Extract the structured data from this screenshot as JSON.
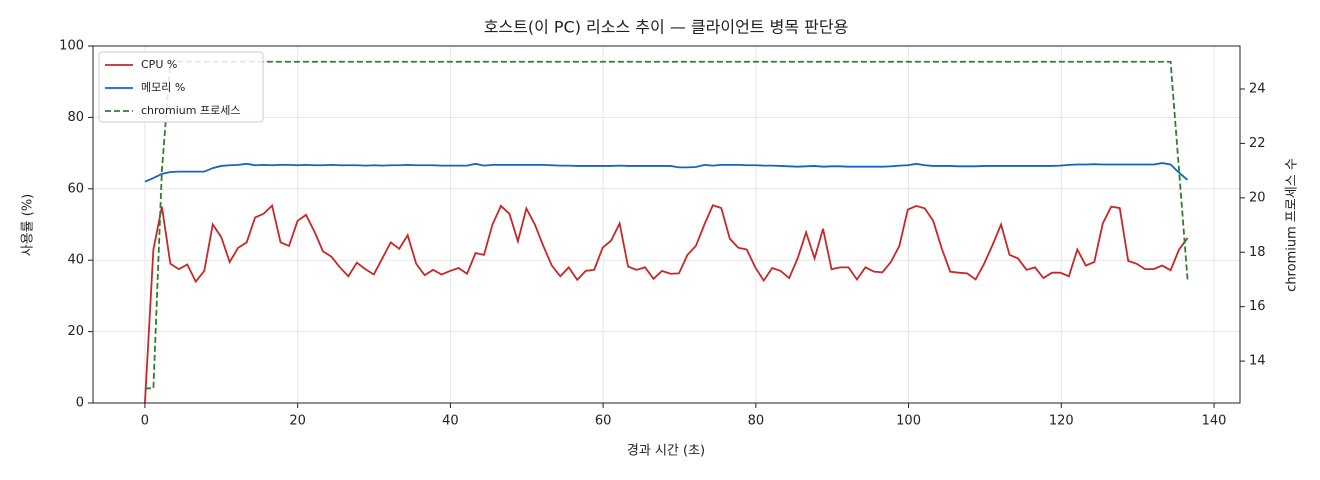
{
  "chart_data": {
    "type": "line",
    "title": "호스트(이 PC) 리소스 추이 — 클라이언트 병목 판단용",
    "x_label": "경과 시간 (초)",
    "y_label": "사용률 (%)",
    "y2_label": "chromium 프로세스 수",
    "x": [
      0,
      1.11,
      2.22,
      3.33,
      4.44,
      5.55,
      6.66,
      7.77,
      8.88,
      9.99,
      11.1,
      12.21,
      13.32,
      14.43,
      15.54,
      16.65,
      17.76,
      18.87,
      19.98,
      21.09,
      22.2,
      23.31,
      24.42,
      25.53,
      26.64,
      27.75,
      28.86,
      29.97,
      31.08,
      32.19,
      33.3,
      34.41,
      35.52,
      36.63,
      37.74,
      38.85,
      39.96,
      41.07,
      42.18,
      43.29,
      44.4,
      45.51,
      46.62,
      47.73,
      48.84,
      49.95,
      51.06,
      52.17,
      53.28,
      54.39,
      55.5,
      56.61,
      57.72,
      58.83,
      59.94,
      61.05,
      62.16,
      63.27,
      64.38,
      65.49,
      66.6,
      67.71,
      68.82,
      69.93,
      71.04,
      72.15,
      73.26,
      74.37,
      75.48,
      76.59,
      77.7,
      78.81,
      79.92,
      81.03,
      82.14,
      83.25,
      84.36,
      85.47,
      86.58,
      87.69,
      88.8,
      89.91,
      91.02,
      92.13,
      93.24,
      94.35,
      95.46,
      96.57,
      97.68,
      98.79,
      99.9,
      101.01,
      102.12,
      103.23,
      104.34,
      105.45,
      106.56,
      107.67,
      108.78,
      109.89,
      111,
      112.11,
      113.22,
      114.33,
      115.44,
      116.55,
      117.66,
      118.77,
      119.88,
      120.99,
      122.1,
      123.21,
      124.32,
      125.43,
      126.54,
      127.65,
      128.76,
      129.87,
      130.98,
      132.09,
      133.2,
      134.31,
      135.42,
      136.53
    ],
    "series": [
      {
        "name": "CPU %",
        "color": "#c62828",
        "axis": "y",
        "dash": false,
        "values": [
          0,
          43,
          55,
          39,
          37.5,
          38.8,
          34,
          37,
          50,
          46.5,
          39.5,
          43.5,
          45,
          52,
          53,
          55.3,
          45,
          44,
          51,
          52.7,
          48,
          42.5,
          41,
          38,
          35.5,
          39.3,
          37.5,
          36,
          40.5,
          45,
          43.2,
          47,
          39,
          35.8,
          37.3,
          36,
          37,
          37.8,
          36.2,
          42,
          41.5,
          50,
          55.2,
          53,
          45.3,
          54.5,
          50,
          44,
          38.5,
          35.5,
          38,
          34.5,
          37,
          37.3,
          43.5,
          45.5,
          50.3,
          38.2,
          37.3,
          38,
          34.8,
          37,
          36.2,
          36.3,
          41.5,
          44,
          50,
          55.4,
          54.6,
          46,
          43.5,
          43,
          38,
          34.3,
          37.8,
          37,
          35,
          40.5,
          47.8,
          40.5,
          48.8,
          37.5,
          38,
          38,
          34.6,
          38,
          36.8,
          36.6,
          39.5,
          44,
          54.2,
          55.2,
          54.5,
          51,
          43.3,
          36.8,
          36.5,
          36.3,
          34.6,
          39,
          44.3,
          50,
          41.5,
          40.5,
          37.3,
          38,
          35,
          36.5,
          36.5,
          35.5,
          43,
          38.5,
          39.5,
          50.3,
          55,
          54.6,
          39.8,
          39,
          37.5,
          37.5,
          38.5,
          37.2,
          43,
          46.2
        ]
      },
      {
        "name": "메모리 %",
        "color": "#1565c0",
        "axis": "y",
        "dash": false,
        "values": [
          62,
          63,
          64.2,
          64.7,
          64.8,
          64.8,
          64.8,
          64.8,
          65.8,
          66.4,
          66.6,
          66.7,
          67,
          66.6,
          66.7,
          66.6,
          66.7,
          66.7,
          66.6,
          66.7,
          66.6,
          66.6,
          66.7,
          66.6,
          66.6,
          66.6,
          66.5,
          66.6,
          66.5,
          66.6,
          66.6,
          66.7,
          66.6,
          66.6,
          66.6,
          66.5,
          66.5,
          66.5,
          66.5,
          67,
          66.5,
          66.7,
          66.7,
          66.7,
          66.7,
          66.7,
          66.7,
          66.7,
          66.6,
          66.5,
          66.5,
          66.4,
          66.4,
          66.4,
          66.4,
          66.4,
          66.5,
          66.4,
          66.4,
          66.4,
          66.4,
          66.4,
          66.4,
          66,
          66,
          66.1,
          66.7,
          66.5,
          66.7,
          66.7,
          66.7,
          66.6,
          66.6,
          66.5,
          66.5,
          66.4,
          66.3,
          66.2,
          66.3,
          66.4,
          66.2,
          66.3,
          66.3,
          66.2,
          66.2,
          66.2,
          66.2,
          66.2,
          66.3,
          66.5,
          66.6,
          67,
          66.6,
          66.4,
          66.4,
          66.4,
          66.3,
          66.3,
          66.3,
          66.4,
          66.4,
          66.4,
          66.4,
          66.4,
          66.4,
          66.4,
          66.4,
          66.4,
          66.5,
          66.7,
          66.8,
          66.8,
          66.9,
          66.8,
          66.8,
          66.8,
          66.8,
          66.8,
          66.8,
          66.8,
          67.2,
          66.8,
          64.5,
          62.5
        ]
      },
      {
        "name": "chromium 프로세스",
        "color": "#2e7d32",
        "axis": "y2",
        "dash": true,
        "values": [
          13,
          13,
          21,
          25,
          25,
          25,
          25,
          25,
          25,
          25,
          25,
          25,
          25,
          25,
          25,
          25,
          25,
          25,
          25,
          25,
          25,
          25,
          25,
          25,
          25,
          25,
          25,
          25,
          25,
          25,
          25,
          25,
          25,
          25,
          25,
          25,
          25,
          25,
          25,
          25,
          25,
          25,
          25,
          25,
          25,
          25,
          25,
          25,
          25,
          25,
          25,
          25,
          25,
          25,
          25,
          25,
          25,
          25,
          25,
          25,
          25,
          25,
          25,
          25,
          25,
          25,
          25,
          25,
          25,
          25,
          25,
          25,
          25,
          25,
          25,
          25,
          25,
          25,
          25,
          25,
          25,
          25,
          25,
          25,
          25,
          25,
          25,
          25,
          25,
          25,
          25,
          25,
          25,
          25,
          25,
          25,
          25,
          25,
          25,
          25,
          25,
          25,
          25,
          25,
          25,
          25,
          25,
          25,
          25,
          25,
          25,
          25,
          25,
          25,
          25,
          25,
          25,
          25,
          25,
          25,
          25,
          25,
          21,
          17
        ]
      }
    ],
    "xlim": [
      -6.8,
      143.4
    ],
    "xticks": [
      0,
      20,
      40,
      60,
      80,
      100,
      120,
      140
    ],
    "ylim": [
      0,
      100
    ],
    "yticks": [
      0,
      20,
      40,
      60,
      80,
      100
    ],
    "y2lim": [
      12.46,
      25.58
    ],
    "y2ticks": [
      14,
      16,
      18,
      20,
      22,
      24
    ],
    "grid": true,
    "legend": "upper-left"
  }
}
